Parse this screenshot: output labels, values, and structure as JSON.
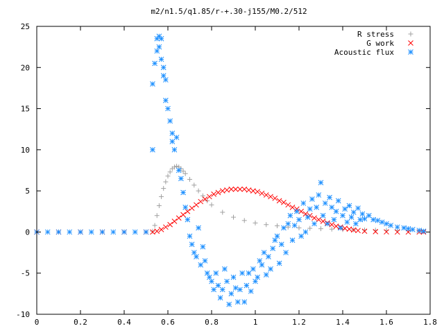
{
  "chart_data": {
    "type": "scatter",
    "title": "m2/n1.5/q1.85/r-+.30-j155/M0.2/512",
    "xlabel": "",
    "ylabel": "",
    "xlim": [
      0,
      1.8
    ],
    "ylim": [
      -10,
      25
    ],
    "xticks": [
      0,
      0.2,
      0.4,
      0.6,
      0.8,
      1,
      1.2,
      1.4,
      1.6,
      1.8
    ],
    "xtick_labels": [
      "0",
      "0.2",
      "0.4",
      "0.6",
      "0.8",
      "1",
      "1.2",
      "1.4",
      "1.6",
      "1.8"
    ],
    "yticks": [
      -10,
      -5,
      0,
      5,
      10,
      15,
      20,
      25
    ],
    "ytick_labels": [
      "-10",
      "-5",
      "0",
      "5",
      "10",
      "15",
      "20",
      "25"
    ],
    "grid": false,
    "legend_position": "top-right",
    "series": [
      {
        "name": "R stress",
        "marker": "plus",
        "color": "#a0a0a0",
        "x": [
          0.0,
          0.1,
          0.2,
          0.3,
          0.4,
          0.5,
          0.53,
          0.54,
          0.55,
          0.56,
          0.57,
          0.58,
          0.59,
          0.6,
          0.61,
          0.62,
          0.63,
          0.64,
          0.65,
          0.66,
          0.67,
          0.68,
          0.7,
          0.72,
          0.74,
          0.76,
          0.78,
          0.8,
          0.85,
          0.9,
          0.95,
          1.0,
          1.05,
          1.1,
          1.15,
          1.2,
          1.25,
          1.3,
          1.35,
          1.4,
          1.45,
          1.5,
          1.55,
          1.6,
          1.65,
          1.7,
          1.75,
          1.77
        ],
        "y": [
          0,
          0,
          0,
          0,
          0,
          0,
          0.1,
          0.8,
          2.0,
          3.2,
          4.3,
          5.3,
          6.1,
          6.8,
          7.3,
          7.7,
          7.9,
          8.0,
          7.9,
          7.7,
          7.4,
          7.1,
          6.4,
          5.7,
          5.0,
          4.4,
          3.8,
          3.3,
          2.4,
          1.8,
          1.4,
          1.1,
          0.9,
          0.75,
          0.6,
          0.5,
          0.45,
          0.4,
          0.35,
          0.3,
          0.28,
          0.25,
          0.22,
          0.2,
          0.18,
          0.15,
          0.1,
          0.05
        ]
      },
      {
        "name": "G work",
        "marker": "cross",
        "color": "#ff0000",
        "x": [
          0.0,
          0.1,
          0.2,
          0.3,
          0.4,
          0.5,
          0.53,
          0.55,
          0.57,
          0.59,
          0.61,
          0.63,
          0.65,
          0.67,
          0.69,
          0.71,
          0.73,
          0.75,
          0.77,
          0.79,
          0.81,
          0.83,
          0.85,
          0.87,
          0.89,
          0.91,
          0.93,
          0.95,
          0.97,
          0.99,
          1.01,
          1.03,
          1.05,
          1.07,
          1.09,
          1.11,
          1.13,
          1.15,
          1.17,
          1.19,
          1.21,
          1.23,
          1.25,
          1.27,
          1.29,
          1.31,
          1.33,
          1.35,
          1.37,
          1.39,
          1.41,
          1.43,
          1.45,
          1.47,
          1.5,
          1.55,
          1.6,
          1.65,
          1.7,
          1.75,
          1.77
        ],
        "y": [
          0,
          0,
          0,
          0,
          0,
          0,
          0.0,
          0.1,
          0.3,
          0.6,
          0.9,
          1.3,
          1.7,
          2.1,
          2.5,
          2.9,
          3.3,
          3.7,
          4.0,
          4.3,
          4.6,
          4.8,
          5.0,
          5.1,
          5.2,
          5.2,
          5.2,
          5.2,
          5.1,
          5.0,
          4.9,
          4.7,
          4.5,
          4.3,
          4.1,
          3.8,
          3.6,
          3.3,
          3.0,
          2.8,
          2.5,
          2.2,
          2.0,
          1.7,
          1.5,
          1.3,
          1.1,
          0.9,
          0.7,
          0.6,
          0.45,
          0.35,
          0.25,
          0.18,
          0.1,
          0.05,
          0.02,
          0.0,
          0.0,
          0.0,
          0.0
        ]
      },
      {
        "name": "Acoustic flux",
        "marker": "star",
        "color": "#1e90ff",
        "x": [
          0.0,
          0.05,
          0.1,
          0.15,
          0.2,
          0.25,
          0.3,
          0.35,
          0.4,
          0.45,
          0.5,
          0.53,
          0.53,
          0.54,
          0.55,
          0.55,
          0.56,
          0.56,
          0.57,
          0.57,
          0.58,
          0.58,
          0.59,
          0.59,
          0.6,
          0.61,
          0.62,
          0.62,
          0.63,
          0.64,
          0.65,
          0.66,
          0.67,
          0.68,
          0.69,
          0.7,
          0.71,
          0.72,
          0.73,
          0.74,
          0.75,
          0.76,
          0.77,
          0.78,
          0.79,
          0.8,
          0.81,
          0.82,
          0.83,
          0.84,
          0.85,
          0.86,
          0.87,
          0.88,
          0.89,
          0.9,
          0.91,
          0.92,
          0.93,
          0.94,
          0.95,
          0.96,
          0.97,
          0.98,
          0.99,
          1.0,
          1.01,
          1.02,
          1.03,
          1.04,
          1.05,
          1.06,
          1.07,
          1.08,
          1.09,
          1.1,
          1.11,
          1.12,
          1.13,
          1.14,
          1.15,
          1.16,
          1.17,
          1.18,
          1.19,
          1.2,
          1.21,
          1.22,
          1.23,
          1.24,
          1.25,
          1.26,
          1.27,
          1.28,
          1.29,
          1.3,
          1.31,
          1.32,
          1.33,
          1.34,
          1.35,
          1.36,
          1.37,
          1.38,
          1.39,
          1.4,
          1.41,
          1.42,
          1.43,
          1.44,
          1.45,
          1.46,
          1.47,
          1.48,
          1.49,
          1.5,
          1.52,
          1.54,
          1.56,
          1.58,
          1.6,
          1.62,
          1.65,
          1.68,
          1.7,
          1.72,
          1.75,
          1.77
        ],
        "y": [
          0,
          0,
          0,
          0,
          0,
          0,
          0,
          0,
          0,
          0,
          0,
          10.0,
          18.0,
          20.5,
          23.5,
          22.0,
          23.8,
          22.5,
          23.5,
          21.0,
          20.0,
          19.0,
          16.0,
          18.5,
          15.0,
          13.5,
          11.0,
          12.0,
          10.0,
          11.5,
          7.5,
          6.5,
          4.8,
          3.0,
          1.5,
          -0.5,
          -1.5,
          -2.5,
          -3.0,
          0.5,
          -4.0,
          -1.8,
          -3.5,
          -5.0,
          -5.5,
          -6.0,
          -7.0,
          -5.0,
          -6.5,
          -8.0,
          -7.0,
          -4.5,
          -6.0,
          -8.8,
          -7.5,
          -5.5,
          -6.8,
          -8.5,
          -7.0,
          -5.0,
          -8.5,
          -6.5,
          -5.0,
          -7.2,
          -4.5,
          -6.0,
          -5.5,
          -3.5,
          -4.0,
          -2.5,
          -5.2,
          -3.0,
          -4.5,
          -2.0,
          -1.0,
          -0.5,
          -3.8,
          -1.5,
          0.5,
          -2.5,
          1.0,
          2.0,
          -1.0,
          0.8,
          2.5,
          1.5,
          -0.5,
          3.5,
          0.0,
          1.8,
          2.8,
          4.0,
          1.0,
          3.0,
          4.5,
          6.0,
          2.0,
          3.5,
          1.0,
          4.2,
          3.0,
          1.5,
          2.5,
          3.8,
          0.5,
          2.0,
          2.8,
          1.2,
          3.2,
          1.8,
          2.4,
          1.0,
          2.9,
          1.5,
          2.2,
          1.6,
          2.0,
          1.5,
          1.4,
          1.2,
          1.0,
          0.8,
          0.6,
          0.5,
          0.4,
          0.3,
          0.2,
          0.1
        ]
      }
    ]
  }
}
